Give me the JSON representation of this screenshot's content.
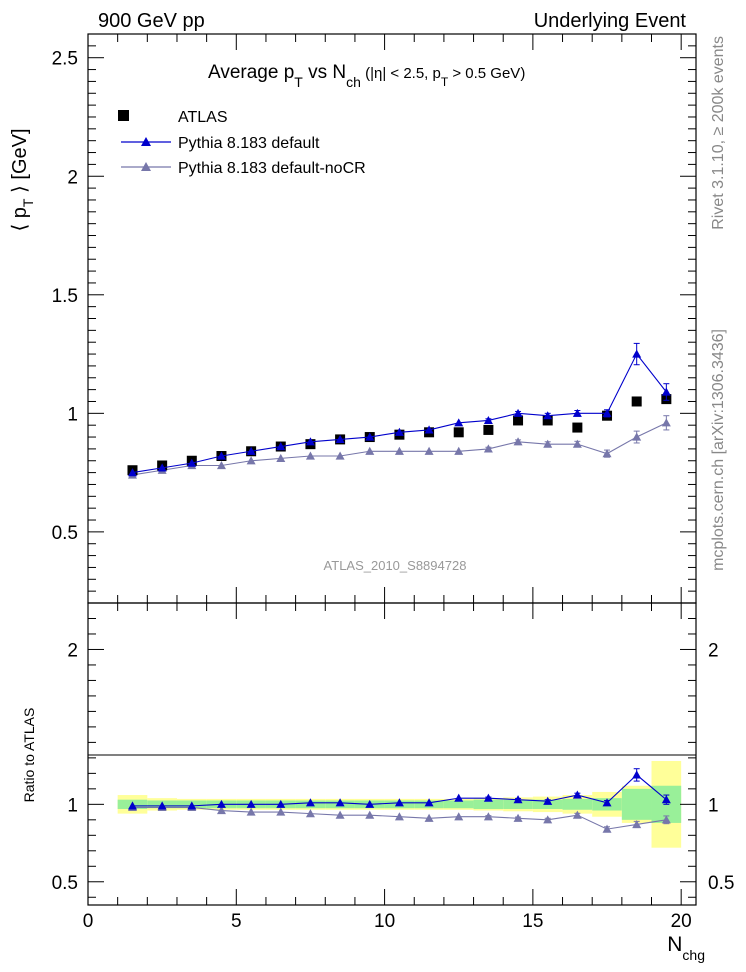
{
  "header": {
    "left": "900 GeV pp",
    "right": "Underlying Event"
  },
  "side": {
    "top": "Rivet 3.1.10, ≥ 200k events",
    "bottom": "mcplots.cern.ch [arXiv:1306.3436]"
  },
  "colors": {
    "atlas": "#000000",
    "default": "#0000cc",
    "nocr": "#7777aa",
    "band_inner": "#99f099",
    "band_outer": "#ffff99"
  },
  "chart_data": [
    {
      "type": "scatter",
      "title": "Average p_T vs N_ch (|η| < 2.5, p_T > 0.5 GeV)",
      "ylabel": "⟨ p_T ⟩ [GeV]",
      "xlabel": "",
      "watermark": "ATLAS_2010_S8894728",
      "xlim": [
        0,
        20.5
      ],
      "ylim": [
        0.2,
        2.6
      ],
      "yticks": [
        "0.5",
        "1",
        "1.5",
        "2",
        "2.5"
      ],
      "legend": {
        "placement": "top-left",
        "entries": [
          "ATLAS",
          "Pythia 8.183 default",
          "Pythia 8.183 default-noCR"
        ]
      },
      "x": [
        1.5,
        2.5,
        3.5,
        4.5,
        5.5,
        6.5,
        7.5,
        8.5,
        9.5,
        10.5,
        11.5,
        12.5,
        13.5,
        14.5,
        15.5,
        16.5,
        17.5,
        18.5,
        19.5
      ],
      "series": [
        {
          "name": "ATLAS",
          "marker": "square",
          "values": [
            0.76,
            0.78,
            0.8,
            0.82,
            0.84,
            0.86,
            0.87,
            0.89,
            0.9,
            0.91,
            0.92,
            0.92,
            0.93,
            0.97,
            0.97,
            0.94,
            0.99,
            1.05,
            1.06
          ]
        },
        {
          "name": "Pythia 8.183 default",
          "marker": "triangle",
          "values": [
            0.75,
            0.77,
            0.79,
            0.82,
            0.84,
            0.86,
            0.88,
            0.89,
            0.9,
            0.92,
            0.93,
            0.96,
            0.97,
            1.0,
            0.99,
            1.0,
            1.0,
            1.25,
            1.09
          ],
          "errors": [
            0.005,
            0.005,
            0.005,
            0.005,
            0.005,
            0.005,
            0.005,
            0.005,
            0.005,
            0.005,
            0.005,
            0.006,
            0.007,
            0.008,
            0.01,
            0.012,
            0.015,
            0.045,
            0.035
          ]
        },
        {
          "name": "Pythia 8.183 default-noCR",
          "marker": "triangle",
          "values": [
            0.74,
            0.76,
            0.78,
            0.78,
            0.8,
            0.81,
            0.82,
            0.82,
            0.84,
            0.84,
            0.84,
            0.84,
            0.85,
            0.88,
            0.87,
            0.87,
            0.83,
            0.9,
            0.96
          ],
          "errors": [
            0.005,
            0.005,
            0.005,
            0.005,
            0.005,
            0.005,
            0.005,
            0.005,
            0.005,
            0.005,
            0.005,
            0.006,
            0.007,
            0.008,
            0.01,
            0.012,
            0.015,
            0.025,
            0.03
          ]
        }
      ]
    },
    {
      "type": "scatter",
      "title": "",
      "ylabel": "Ratio to ATLAS",
      "xlabel": "N_chg",
      "xlim": [
        0,
        20.5
      ],
      "ylim": [
        0.35,
        2.3
      ],
      "yticks": [
        "0.5",
        "1",
        "2"
      ],
      "xticks": [
        "0",
        "5",
        "10",
        "15",
        "20"
      ],
      "x": [
        1.5,
        2.5,
        3.5,
        4.5,
        5.5,
        6.5,
        7.5,
        8.5,
        9.5,
        10.5,
        11.5,
        12.5,
        13.5,
        14.5,
        15.5,
        16.5,
        17.5,
        18.5,
        19.5
      ],
      "band_inner": [
        0.03,
        0.025,
        0.025,
        0.025,
        0.025,
        0.025,
        0.025,
        0.025,
        0.025,
        0.025,
        0.025,
        0.025,
        0.03,
        0.03,
        0.03,
        0.035,
        0.04,
        0.1,
        0.12
      ],
      "band_outer": [
        0.06,
        0.04,
        0.035,
        0.035,
        0.035,
        0.035,
        0.035,
        0.035,
        0.035,
        0.035,
        0.035,
        0.035,
        0.04,
        0.045,
        0.05,
        0.06,
        0.08,
        0.12,
        0.28
      ],
      "series": [
        {
          "name": "Pythia 8.183 default",
          "values": [
            0.99,
            0.99,
            0.99,
            1.0,
            1.0,
            1.0,
            1.01,
            1.01,
            1.0,
            1.01,
            1.01,
            1.04,
            1.04,
            1.03,
            1.02,
            1.06,
            1.01,
            1.19,
            1.03
          ],
          "errors": [
            0.005,
            0.005,
            0.005,
            0.005,
            0.005,
            0.005,
            0.005,
            0.005,
            0.005,
            0.005,
            0.005,
            0.006,
            0.007,
            0.008,
            0.01,
            0.012,
            0.015,
            0.04,
            0.03
          ]
        },
        {
          "name": "Pythia 8.183 default-noCR",
          "values": [
            0.98,
            0.98,
            0.98,
            0.96,
            0.95,
            0.95,
            0.94,
            0.93,
            0.93,
            0.92,
            0.91,
            0.92,
            0.92,
            0.91,
            0.9,
            0.93,
            0.84,
            0.87,
            0.9
          ],
          "errors": [
            0.005,
            0.005,
            0.005,
            0.005,
            0.005,
            0.005,
            0.005,
            0.005,
            0.005,
            0.005,
            0.005,
            0.006,
            0.007,
            0.008,
            0.01,
            0.012,
            0.015,
            0.02,
            0.025
          ]
        }
      ]
    }
  ]
}
